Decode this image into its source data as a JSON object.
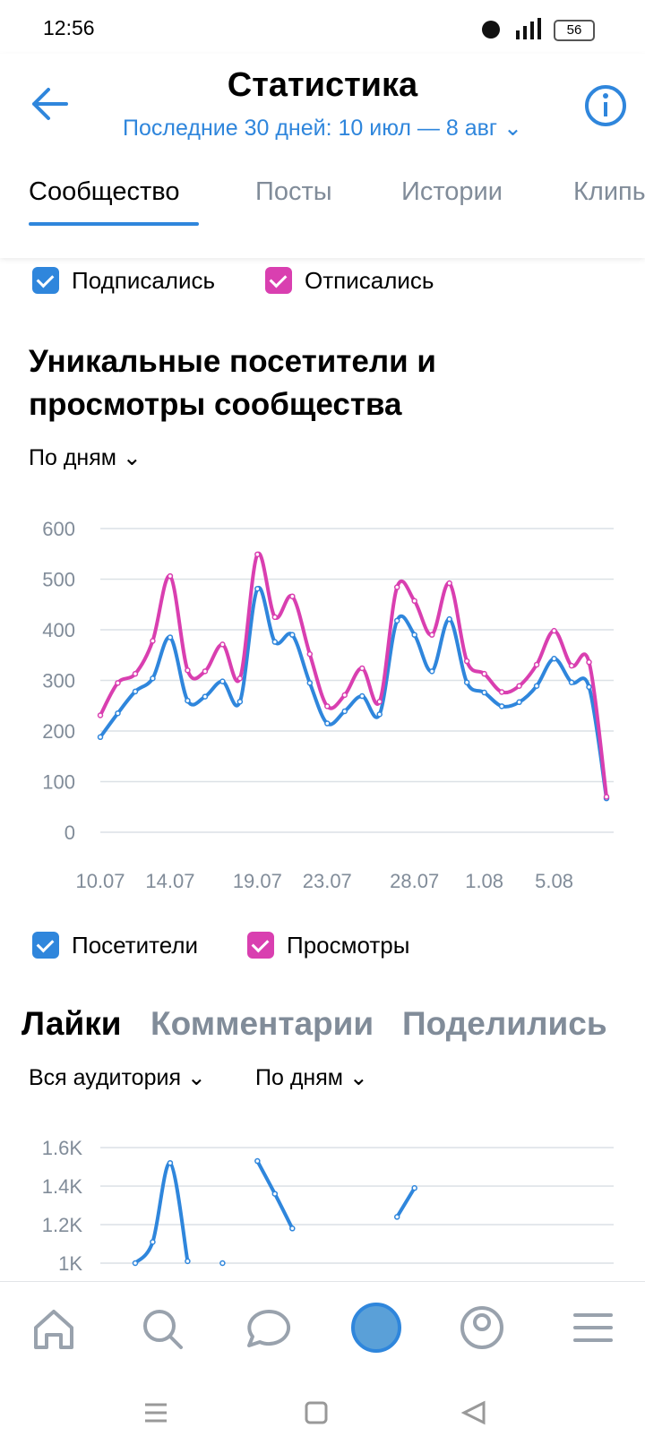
{
  "status_bar": {
    "time": "12:56",
    "battery": "56"
  },
  "header": {
    "title": "Статистика",
    "subtitle": "Последние 30 дней: 10 июл — 8 авг"
  },
  "tabs": [
    "Сообщество",
    "Посты",
    "Истории",
    "Клипы"
  ],
  "top_toggles": [
    "Подписались",
    "Отписались"
  ],
  "section_title": [
    "Уникальные посетители и",
    "просмотры сообщества"
  ],
  "period": "По дням",
  "tabs2": [
    "Лайки",
    "Комментарии",
    "Поделились"
  ],
  "filters2": [
    "Вся аудитория",
    "По дням"
  ],
  "chart_data": [
    {
      "type": "line",
      "categories": [
        "10.07",
        null,
        null,
        null,
        "14.07",
        null,
        null,
        null,
        null,
        "19.07",
        null,
        null,
        null,
        "23.07",
        null,
        null,
        null,
        null,
        "28.07",
        null,
        null,
        null,
        "1.08",
        null,
        null,
        null,
        "5.08",
        null,
        null,
        null
      ],
      "series": [
        {
          "name": "Посетители",
          "color": "#2f86dc",
          "values": [
            188,
            235,
            278,
            304,
            385,
            260,
            268,
            298,
            258,
            481,
            376,
            390,
            295,
            215,
            239,
            269,
            233,
            418,
            390,
            318,
            421,
            296,
            276,
            249,
            257,
            289,
            343,
            296,
            287,
            67
          ]
        },
        {
          "name": "Просмотры",
          "color": "#d93fb0",
          "values": [
            231,
            295,
            313,
            378,
            506,
            320,
            318,
            371,
            304,
            549,
            425,
            466,
            352,
            249,
            271,
            324,
            258,
            484,
            457,
            390,
            492,
            338,
            313,
            277,
            289,
            331,
            398,
            329,
            336,
            70
          ]
        }
      ],
      "ylim": [
        0,
        600
      ],
      "yticks": [
        0,
        100,
        200,
        300,
        400,
        500,
        600
      ],
      "grid": true
    },
    {
      "type": "line",
      "categories": [
        null,
        null,
        null,
        null,
        null,
        null,
        null,
        null,
        null,
        null,
        null,
        null,
        null,
        null,
        null,
        null,
        null,
        null,
        null,
        null,
        null,
        null,
        null,
        null,
        null,
        null,
        null,
        null,
        null,
        null
      ],
      "series": [
        {
          "name": "Лайки",
          "color": "#2f86dc",
          "values": [
            null,
            null,
            1000,
            1110,
            1520,
            1010,
            null,
            1000,
            null,
            1530,
            1360,
            1180,
            null,
            null,
            null,
            null,
            null,
            1240,
            1390,
            null,
            null,
            null,
            null,
            null,
            null,
            null,
            null,
            null,
            null,
            null
          ]
        }
      ],
      "ylim": [
        0,
        1600
      ],
      "yticks": [
        {
          "value": 1000,
          "label": "1K"
        },
        {
          "value": 1200,
          "label": "1.2K"
        },
        {
          "value": 1400,
          "label": "1.4K"
        },
        {
          "value": 1600,
          "label": "1.6K"
        }
      ],
      "grid": true
    }
  ]
}
